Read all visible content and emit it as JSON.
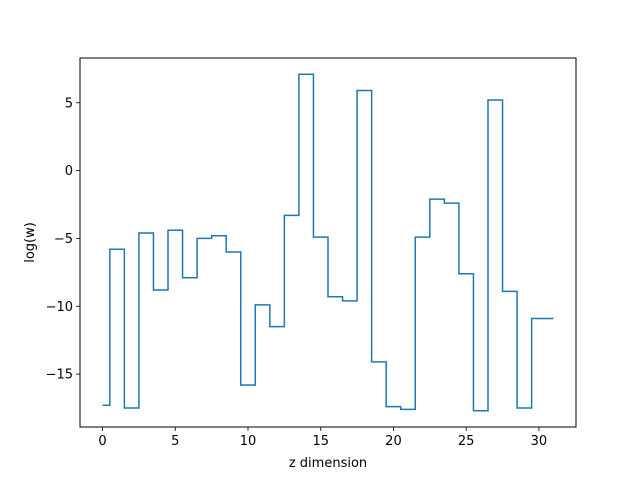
{
  "chart_data": {
    "type": "line",
    "drawstyle": "steps-mid",
    "xlabel": "z dimension",
    "ylabel": "log(w)",
    "xlim": [
      -1.55,
      32.55
    ],
    "ylim": [
      -18.9,
      8.3
    ],
    "xticks": [
      0,
      5,
      10,
      15,
      20,
      25,
      30
    ],
    "yticks": [
      -15,
      -10,
      -5,
      0,
      5
    ],
    "grid": false,
    "series": [
      {
        "color": "#1f77b4",
        "x": [
          0,
          1,
          2,
          3,
          4,
          5,
          6,
          7,
          8,
          9,
          10,
          11,
          12,
          13,
          14,
          15,
          16,
          17,
          18,
          19,
          20,
          21,
          22,
          23,
          24,
          25,
          26,
          27,
          28,
          29,
          30,
          31
        ],
        "y": [
          -17.3,
          -5.8,
          -17.5,
          -4.6,
          -8.8,
          -4.4,
          -7.9,
          -5.0,
          -4.8,
          -6.0,
          -15.8,
          -9.9,
          -11.5,
          -3.3,
          7.1,
          -4.9,
          -9.3,
          -9.6,
          5.9,
          -14.1,
          -17.4,
          -17.6,
          -4.9,
          -2.1,
          -2.4,
          -7.6,
          -17.7,
          5.2,
          -8.9,
          -17.5,
          -10.9,
          -10.9
        ]
      }
    ]
  }
}
